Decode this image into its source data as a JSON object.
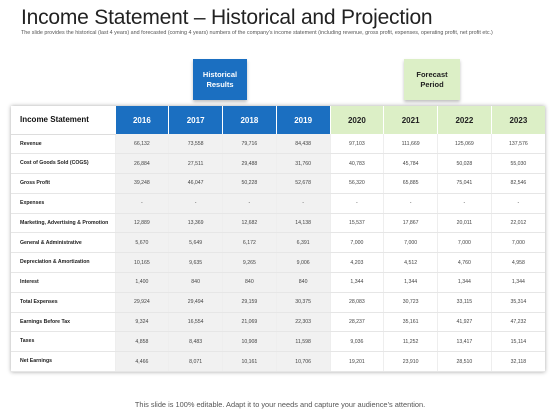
{
  "title": "Income Statement – Historical and Projection",
  "subtitle": "The slide provides the historical (last 4 years) and forecasted (coming 4 years) numbers of the company’s income statement (including revenue, gross profit, expenses, operating profit, net profit etc.)",
  "headers": {
    "historical": "Historical Results",
    "forecast": "Forecast Period"
  },
  "colors": {
    "historical": "#1b6fc1",
    "forecast": "#dcefc6"
  },
  "table": {
    "label_header": "Income Statement",
    "years": [
      "2016",
      "2017",
      "2018",
      "2019",
      "2020",
      "2021",
      "2022",
      "2023"
    ],
    "rows": [
      {
        "label": "Revenue",
        "values": [
          "66,132",
          "73,558",
          "79,716",
          "84,438",
          "97,103",
          "111,669",
          "125,069",
          "137,576"
        ]
      },
      {
        "label": "Cost of Goods Sold (COGS)",
        "values": [
          "26,884",
          "27,511",
          "29,488",
          "31,760",
          "40,783",
          "45,784",
          "50,028",
          "55,030"
        ]
      },
      {
        "label": "Gross Profit",
        "values": [
          "39,248",
          "46,047",
          "50,228",
          "52,678",
          "56,320",
          "65,885",
          "75,041",
          "82,546"
        ]
      },
      {
        "label": "Expenses",
        "values": [
          "-",
          "-",
          "-",
          "-",
          "-",
          "-",
          "-",
          "-"
        ]
      },
      {
        "label": "Marketing, Advertising & Promotion",
        "values": [
          "12,889",
          "13,369",
          "12,682",
          "14,138",
          "15,537",
          "17,867",
          "20,011",
          "22,012"
        ]
      },
      {
        "label": "General & Administrative",
        "values": [
          "5,670",
          "5,649",
          "6,172",
          "6,391",
          "7,000",
          "7,000",
          "7,000",
          "7,000"
        ]
      },
      {
        "label": "Depreciation & Amortization",
        "values": [
          "10,165",
          "9,635",
          "9,265",
          "9,006",
          "4,203",
          "4,512",
          "4,760",
          "4,958"
        ]
      },
      {
        "label": "Interest",
        "values": [
          "1,400",
          "840",
          "840",
          "840",
          "1,344",
          "1,344",
          "1,344",
          "1,344"
        ]
      },
      {
        "label": "Total Expenses",
        "values": [
          "29,924",
          "29,494",
          "29,159",
          "30,375",
          "28,083",
          "30,723",
          "33,115",
          "35,314"
        ]
      },
      {
        "label": "Earnings Before Tax",
        "values": [
          "9,324",
          "16,554",
          "21,069",
          "22,303",
          "28,237",
          "35,161",
          "41,927",
          "47,232"
        ]
      },
      {
        "label": "Taxes",
        "values": [
          "4,858",
          "8,483",
          "10,908",
          "11,598",
          "9,036",
          "11,252",
          "13,417",
          "15,114"
        ]
      },
      {
        "label": "Net Earnings",
        "values": [
          "4,466",
          "8,071",
          "10,161",
          "10,706",
          "19,201",
          "23,910",
          "28,510",
          "32,118"
        ]
      }
    ]
  },
  "footer": "This slide is 100% editable. Adapt it to your needs and capture your audience’s attention."
}
